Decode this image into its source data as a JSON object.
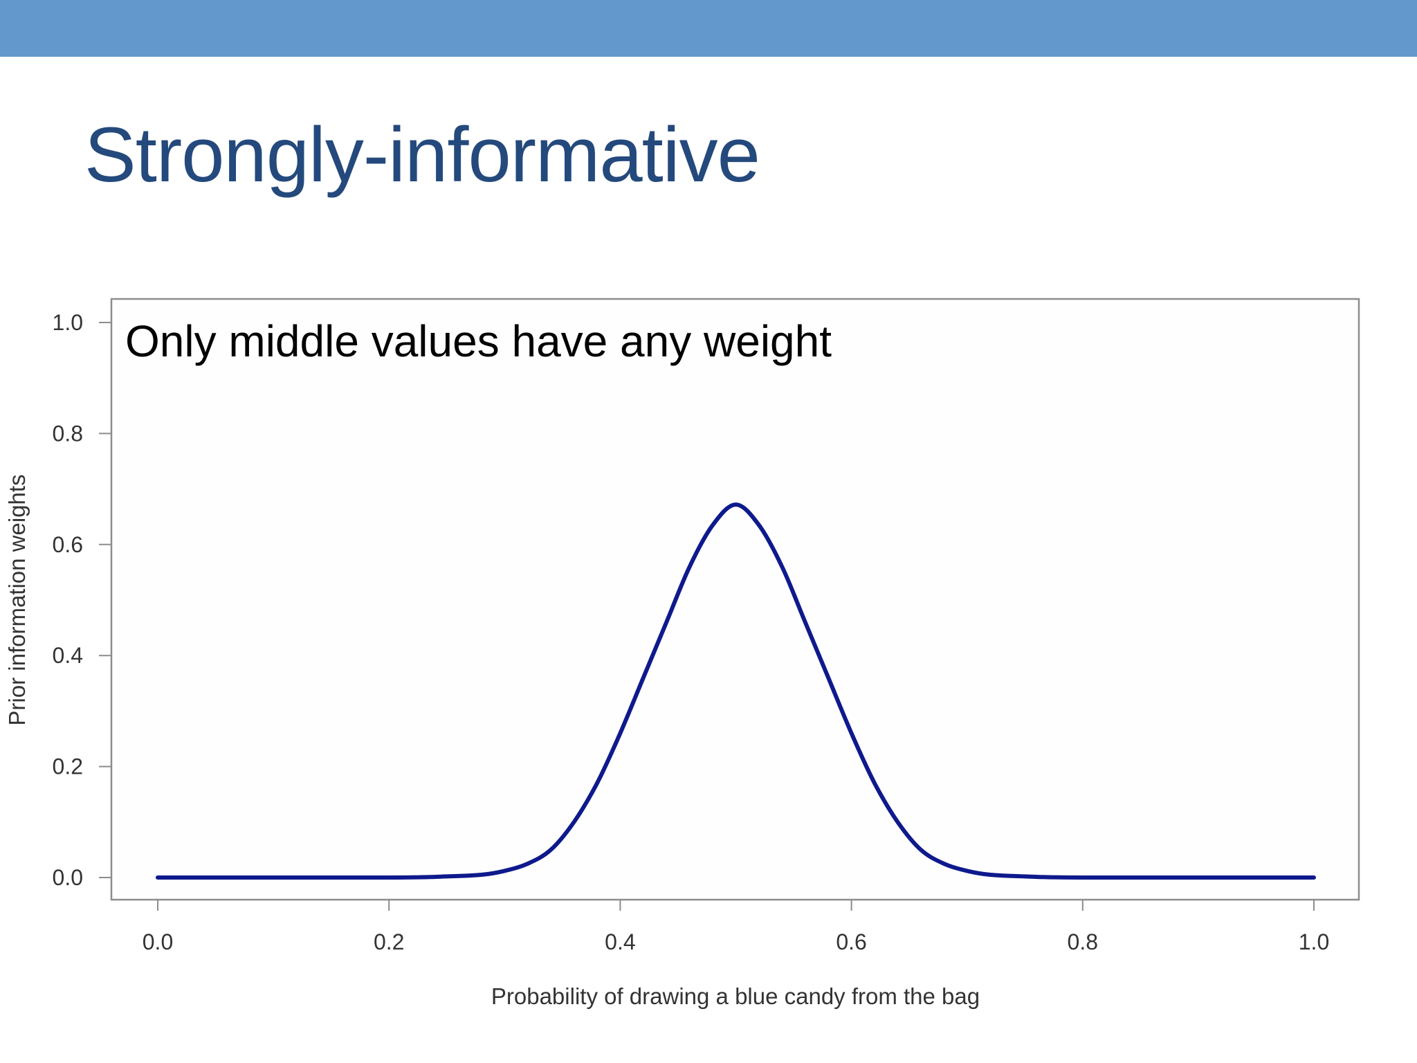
{
  "slide": {
    "title": "Strongly-informative",
    "bar_color": "#6398cc",
    "title_color": "#24497c"
  },
  "chart_data": {
    "type": "line",
    "title": "",
    "annotation": "Only middle values have any weight",
    "xlabel": "Probability of drawing a blue candy from the bag",
    "ylabel": "Prior information weights",
    "xlim": [
      0.0,
      1.0
    ],
    "ylim": [
      0.0,
      1.0
    ],
    "x_ticks": [
      "0.0",
      "0.2",
      "0.4",
      "0.6",
      "0.8",
      "1.0"
    ],
    "y_ticks": [
      "0.0",
      "0.2",
      "0.4",
      "0.6",
      "0.8",
      "1.0"
    ],
    "grid": false,
    "legend": "none",
    "line_color": "#0e1a8c",
    "series": [
      {
        "x": [
          0.0,
          0.2,
          0.25,
          0.28,
          0.3,
          0.32,
          0.34,
          0.36,
          0.38,
          0.4,
          0.42,
          0.44,
          0.46,
          0.48,
          0.5,
          0.52,
          0.54,
          0.56,
          0.58,
          0.6,
          0.62,
          0.64,
          0.66,
          0.68,
          0.7,
          0.72,
          0.75,
          0.8,
          1.0
        ],
        "values": [
          0.0,
          0.0,
          0.002,
          0.005,
          0.012,
          0.025,
          0.05,
          0.1,
          0.17,
          0.26,
          0.36,
          0.46,
          0.56,
          0.635,
          0.672,
          0.635,
          0.56,
          0.46,
          0.36,
          0.26,
          0.17,
          0.1,
          0.05,
          0.025,
          0.012,
          0.005,
          0.002,
          0.0,
          0.0
        ]
      }
    ]
  }
}
